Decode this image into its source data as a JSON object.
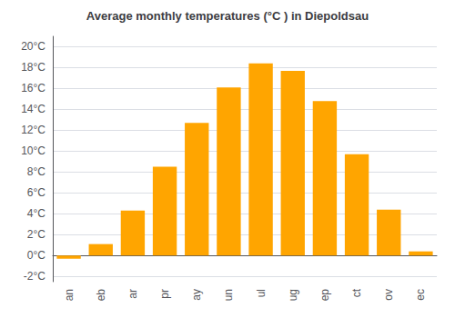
{
  "chart_data": {
    "type": "bar",
    "title": "Average monthly temperatures (°C ) in Diepoldsau",
    "categories": [
      "an",
      "eb",
      "ar",
      "pr",
      "ay",
      "un",
      "ul",
      "ug",
      "ep",
      "ct",
      "ov",
      "ec"
    ],
    "values": [
      -0.3,
      1.1,
      4.3,
      8.5,
      12.7,
      16.1,
      18.4,
      17.7,
      14.8,
      9.7,
      4.4,
      0.4
    ],
    "color": "#FFA500",
    "ylim": [
      -2.5,
      21
    ],
    "yticks": [
      {
        "value": -2,
        "label": "-2°C"
      },
      {
        "value": 0,
        "label": "0°C"
      },
      {
        "value": 2,
        "label": "2°C"
      },
      {
        "value": 4,
        "label": "4°C"
      },
      {
        "value": 6,
        "label": "6°C"
      },
      {
        "value": 8,
        "label": "8°C"
      },
      {
        "value": 10,
        "label": "10°C"
      },
      {
        "value": 12,
        "label": "12°C"
      },
      {
        "value": 14,
        "label": "14°C"
      },
      {
        "value": 16,
        "label": "16°C"
      },
      {
        "value": 18,
        "label": "18°C"
      },
      {
        "value": 20,
        "label": "20°C"
      }
    ],
    "grid": true
  }
}
